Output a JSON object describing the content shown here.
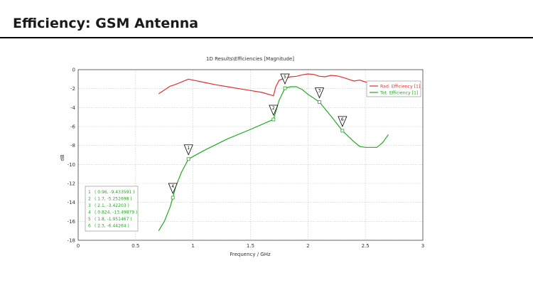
{
  "slide": {
    "title": "Efficiency: GSM Antenna"
  },
  "chart_data": {
    "type": "line",
    "title": "1D Results\\Efficiencies [Magnitude]",
    "xlabel": "Frequency / GHz",
    "ylabel": "dB",
    "xlim": [
      0,
      3
    ],
    "ylim": [
      -18,
      0
    ],
    "xticks": [
      0,
      0.5,
      1,
      1.5,
      2,
      2.5,
      3
    ],
    "xtick_labels": [
      "0",
      "0.5",
      "1",
      "1.5",
      "2",
      "2.5",
      "3"
    ],
    "yticks": [
      0,
      -2,
      -4,
      -6,
      -8,
      -10,
      -12,
      -14,
      -16,
      -18
    ],
    "ytick_labels": [
      "0",
      "-2",
      "-4",
      "-6",
      "-8",
      "-10",
      "-12",
      "-14",
      "-16",
      "-18"
    ],
    "grid": true,
    "legend_position": "top-right",
    "series": [
      {
        "name": "Rad. Efficiency [1]",
        "color": "#e03030",
        "x": [
          0.7,
          0.8,
          0.85,
          0.9,
          0.96,
          1.0,
          1.1,
          1.2,
          1.3,
          1.4,
          1.5,
          1.6,
          1.7,
          1.72,
          1.75,
          1.8,
          1.85,
          1.9,
          1.95,
          2.0,
          2.05,
          2.1,
          2.15,
          2.2,
          2.25,
          2.3,
          2.35,
          2.4,
          2.45,
          2.5,
          2.55,
          2.6
        ],
        "y": [
          -2.55,
          -1.75,
          -1.55,
          -1.3,
          -1.0,
          -1.1,
          -1.35,
          -1.6,
          -1.8,
          -2.0,
          -2.2,
          -2.4,
          -2.75,
          -1.8,
          -1.1,
          -0.9,
          -0.75,
          -0.7,
          -0.55,
          -0.45,
          -0.5,
          -0.7,
          -0.75,
          -0.6,
          -0.65,
          -0.8,
          -1.0,
          -1.2,
          -1.1,
          -1.3,
          -1.5,
          -1.55
        ]
      },
      {
        "name": "Tot. Efficiency [1]",
        "color": "#22aa22",
        "x": [
          0.7,
          0.75,
          0.8,
          0.824,
          0.85,
          0.9,
          0.96,
          1.1,
          1.3,
          1.5,
          1.7,
          1.75,
          1.8,
          1.85,
          1.9,
          1.95,
          2.0,
          2.05,
          2.1,
          2.2,
          2.3,
          2.4,
          2.45,
          2.5,
          2.55,
          2.6,
          2.65,
          2.7
        ],
        "y": [
          -17.0,
          -16.0,
          -14.5,
          -13.5,
          -12.3,
          -10.8,
          -9.43,
          -8.5,
          -7.3,
          -6.3,
          -5.25,
          -3.2,
          -1.95,
          -1.8,
          -1.8,
          -2.1,
          -2.6,
          -3.0,
          -3.42,
          -4.9,
          -6.44,
          -7.6,
          -8.1,
          -8.2,
          -8.2,
          -8.2,
          -7.7,
          -6.85
        ]
      }
    ],
    "markers": [
      {
        "id": "1",
        "x": 0.96,
        "y": -9.433591
      },
      {
        "id": "2",
        "x": 1.7,
        "y": -5.252698
      },
      {
        "id": "3",
        "x": 2.1,
        "y": -3.42203
      },
      {
        "id": "4",
        "x": 0.824,
        "y": -13.49879
      },
      {
        "id": "5",
        "x": 1.8,
        "y": -1.951467
      },
      {
        "id": "6",
        "x": 2.3,
        "y": -6.44264
      }
    ],
    "marker_table": [
      {
        "label": "1",
        "text": "( 0.96, -9.433591 )"
      },
      {
        "label": "2",
        "text": "( 1.7, -5.252698 )"
      },
      {
        "label": "3",
        "text": "( 2.1, -3.42203 )"
      },
      {
        "label": "4",
        "text": "( 0.824, -13.49879 )"
      },
      {
        "label": "5",
        "text": "( 1.8, -1.951467 )"
      },
      {
        "label": "6",
        "text": "( 2.3, -6.44264 )"
      }
    ]
  }
}
